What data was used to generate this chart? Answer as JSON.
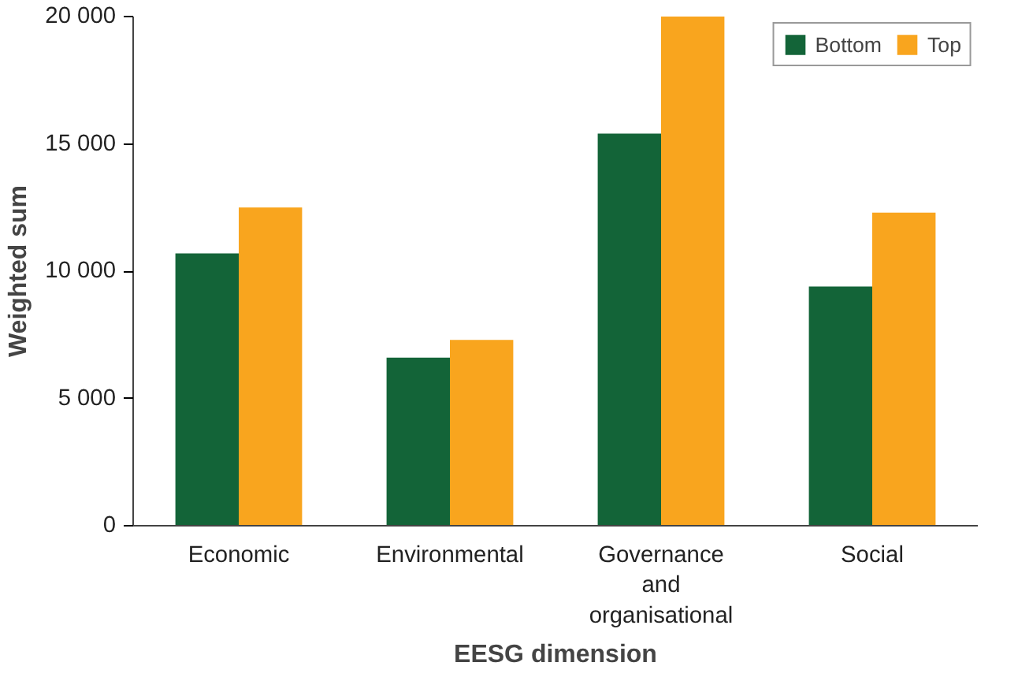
{
  "chart_data": {
    "type": "bar",
    "xlabel": "EESG dimension",
    "ylabel": "Weighted sum",
    "categories": [
      "Economic",
      "Environmental",
      "Governance and organisational",
      "Social"
    ],
    "series": [
      {
        "name": "Bottom",
        "color": "#136438",
        "values": [
          10700,
          6600,
          15400,
          9400
        ]
      },
      {
        "name": "Top",
        "color": "#f9a51e",
        "values": [
          12500,
          7300,
          20000,
          12300
        ]
      }
    ],
    "ylim": [
      0,
      20000
    ],
    "yticks": [
      0,
      {
        "value": 5000,
        "label": "5 000"
      },
      {
        "value": 10000,
        "label": "10 000"
      },
      {
        "value": 15000,
        "label": "15 000"
      },
      {
        "value": 20000,
        "label": "20 000"
      }
    ],
    "grid": false,
    "legend": "top right"
  }
}
